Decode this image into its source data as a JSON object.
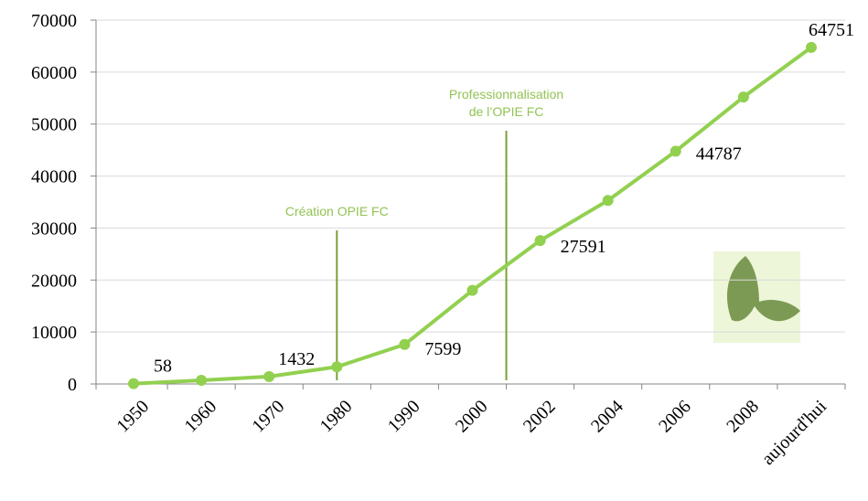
{
  "chart_data": {
    "type": "line",
    "categories": [
      "1950",
      "1960",
      "1970",
      "1980",
      "1990",
      "2000",
      "2002",
      "2004",
      "2006",
      "2008",
      "aujourd'hui"
    ],
    "series": [
      {
        "name": null,
        "color": "#92d050",
        "values": [
          58,
          700,
          1432,
          3300,
          7599,
          18000,
          27591,
          35300,
          44787,
          55200,
          64751
        ],
        "value_labels": [
          "58",
          null,
          "1432",
          null,
          "7599",
          null,
          "27591",
          null,
          "44787",
          null,
          "64751"
        ]
      }
    ],
    "ylim": [
      0,
      70000
    ],
    "yticks": [
      0,
      10000,
      20000,
      30000,
      40000,
      50000,
      60000,
      70000
    ],
    "grid": true,
    "annotations": [
      {
        "text": [
          "Création OPIE FC"
        ],
        "color": "#92c353",
        "line_color": "#7aa03a"
      },
      {
        "text": [
          "Professionnalisation",
          "de l’OPIE FC"
        ],
        "color": "#92c353",
        "line_color": "#7aa03a"
      }
    ]
  }
}
